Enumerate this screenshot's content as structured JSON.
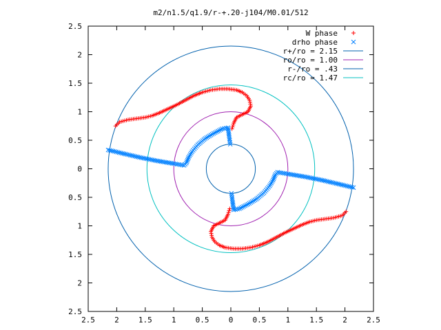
{
  "chart_data": {
    "type": "scatter",
    "title": "m2/n1.5/q1.9/r-+.20-j104/M0.01/512",
    "xlabel": "",
    "ylabel": "",
    "xlim": [
      -2.5,
      2.5
    ],
    "ylim": [
      -2.5,
      2.5
    ],
    "x_ticks": [
      "2.5",
      "2",
      "1.5",
      "1",
      "0.5",
      "0",
      "0.5",
      "1",
      "1.5",
      "2",
      "2.5"
    ],
    "y_ticks": [
      "2.5",
      "2",
      "1.5",
      "1",
      "0.5",
      "0",
      "0.5",
      "1",
      "1.5",
      "2",
      "2.5"
    ],
    "grid": false,
    "legend_position": "top-right",
    "series": [
      {
        "name": "W phase",
        "marker": "plus",
        "color": "#ff0000",
        "branches": [
          [
            [
              -2.02,
              0.75
            ],
            [
              -1.95,
              0.82
            ],
            [
              -1.8,
              0.86
            ],
            [
              -1.65,
              0.88
            ],
            [
              -1.5,
              0.9
            ],
            [
              -1.38,
              0.93
            ],
            [
              -1.25,
              0.98
            ],
            [
              -1.1,
              1.05
            ],
            [
              -0.95,
              1.12
            ],
            [
              -0.8,
              1.2
            ],
            [
              -0.65,
              1.28
            ],
            [
              -0.5,
              1.34
            ],
            [
              -0.35,
              1.38
            ],
            [
              -0.2,
              1.4
            ],
            [
              -0.05,
              1.4
            ],
            [
              0.1,
              1.38
            ],
            [
              0.2,
              1.34
            ],
            [
              0.28,
              1.28
            ],
            [
              0.33,
              1.2
            ],
            [
              0.35,
              1.1
            ],
            [
              0.3,
              1.0
            ],
            [
              0.2,
              0.95
            ],
            [
              0.1,
              0.9
            ],
            [
              0.05,
              0.8
            ],
            [
              0.02,
              0.7
            ]
          ],
          [
            [
              2.02,
              -0.75
            ],
            [
              1.95,
              -0.82
            ],
            [
              1.8,
              -0.86
            ],
            [
              1.65,
              -0.88
            ],
            [
              1.5,
              -0.9
            ],
            [
              1.38,
              -0.93
            ],
            [
              1.25,
              -0.98
            ],
            [
              1.1,
              -1.05
            ],
            [
              0.95,
              -1.12
            ],
            [
              0.8,
              -1.2
            ],
            [
              0.65,
              -1.28
            ],
            [
              0.5,
              -1.34
            ],
            [
              0.35,
              -1.38
            ],
            [
              0.2,
              -1.4
            ],
            [
              0.05,
              -1.4
            ],
            [
              -0.1,
              -1.38
            ],
            [
              -0.2,
              -1.34
            ],
            [
              -0.28,
              -1.28
            ],
            [
              -0.33,
              -1.2
            ],
            [
              -0.35,
              -1.1
            ],
            [
              -0.3,
              -1.0
            ],
            [
              -0.2,
              -0.95
            ],
            [
              -0.1,
              -0.9
            ],
            [
              -0.05,
              -0.8
            ],
            [
              -0.02,
              -0.7
            ]
          ]
        ]
      },
      {
        "name": "drho phase",
        "marker": "cross",
        "color": "#0080ff",
        "branches": [
          [
            [
              -2.15,
              0.33
            ],
            [
              -1.9,
              0.27
            ],
            [
              -1.6,
              0.2
            ],
            [
              -1.3,
              0.14
            ],
            [
              -1.0,
              0.09
            ],
            [
              -0.82,
              0.06
            ],
            [
              -0.78,
              0.1
            ],
            [
              -0.74,
              0.2
            ],
            [
              -0.68,
              0.3
            ],
            [
              -0.58,
              0.42
            ],
            [
              -0.45,
              0.53
            ],
            [
              -0.3,
              0.62
            ],
            [
              -0.15,
              0.7
            ],
            [
              -0.05,
              0.72
            ],
            [
              -0.02,
              0.5
            ],
            [
              -0.01,
              0.43
            ]
          ],
          [
            [
              2.15,
              -0.33
            ],
            [
              1.9,
              -0.27
            ],
            [
              1.6,
              -0.2
            ],
            [
              1.3,
              -0.14
            ],
            [
              1.0,
              -0.09
            ],
            [
              0.82,
              -0.06
            ],
            [
              0.78,
              -0.1
            ],
            [
              0.74,
              -0.2
            ],
            [
              0.68,
              -0.3
            ],
            [
              0.58,
              -0.42
            ],
            [
              0.45,
              -0.53
            ],
            [
              0.3,
              -0.62
            ],
            [
              0.15,
              -0.7
            ],
            [
              0.05,
              -0.72
            ],
            [
              0.02,
              -0.5
            ],
            [
              0.01,
              -0.43
            ]
          ]
        ]
      },
      {
        "name": "r+/ro = 2.15",
        "type": "circle",
        "radius": 2.15,
        "color": "#0060ad"
      },
      {
        "name": "ro/ro = 1.00",
        "type": "circle",
        "radius": 1.0,
        "color": "#a020b0"
      },
      {
        "name": "r-/ro = .43",
        "type": "circle",
        "radius": 0.43,
        "color": "#0060ad"
      },
      {
        "name": "rc/ro = 1.47",
        "type": "circle",
        "radius": 1.47,
        "color": "#00c0c0"
      }
    ]
  }
}
